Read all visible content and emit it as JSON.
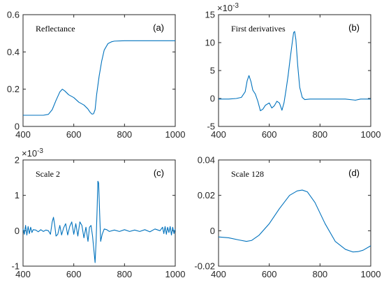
{
  "chart_data": [
    {
      "type": "line",
      "title": "Reflectance",
      "panel_letter": "(a)",
      "xlim": [
        400,
        1000
      ],
      "ylim": [
        0,
        0.6
      ],
      "xticks": [
        "400",
        "600",
        "800",
        "1000"
      ],
      "yticks": [
        "0",
        "0.2",
        "0.4",
        "0.6"
      ],
      "exponent_label": "",
      "color": "#0072BD",
      "series": [
        {
          "x": [
            400,
            440,
            480,
            500,
            515,
            530,
            545,
            555,
            565,
            580,
            600,
            620,
            640,
            655,
            665,
            672,
            678,
            684,
            690,
            700,
            710,
            720,
            735,
            750,
            760,
            800,
            850,
            900,
            950,
            1000
          ],
          "y": [
            0.06,
            0.06,
            0.06,
            0.065,
            0.09,
            0.14,
            0.185,
            0.2,
            0.19,
            0.17,
            0.155,
            0.13,
            0.115,
            0.095,
            0.075,
            0.066,
            0.068,
            0.09,
            0.17,
            0.27,
            0.35,
            0.41,
            0.445,
            0.455,
            0.458,
            0.46,
            0.46,
            0.46,
            0.46,
            0.46
          ]
        }
      ]
    },
    {
      "type": "line",
      "title": "First derivatives",
      "panel_letter": "(b)",
      "xlim": [
        400,
        1000
      ],
      "ylim": [
        -5,
        15
      ],
      "xticks": [
        "400",
        "600",
        "800",
        "1000"
      ],
      "yticks": [
        "-5",
        "0",
        "5",
        "10",
        "15"
      ],
      "exponent_label": "×10",
      "exponent_power": "-3",
      "color": "#0072BD",
      "series": [
        {
          "x": [
            400,
            440,
            470,
            490,
            505,
            513,
            520,
            528,
            535,
            545,
            555,
            565,
            575,
            585,
            600,
            610,
            620,
            630,
            640,
            650,
            658,
            666,
            674,
            682,
            690,
            696,
            700,
            705,
            712,
            720,
            730,
            740,
            760,
            800,
            850,
            900,
            940,
            960,
            1000
          ],
          "y": [
            -0.1,
            -0.1,
            0,
            0.2,
            1.2,
            3.2,
            4.1,
            3.0,
            1.5,
            0.8,
            -0.5,
            -2.2,
            -1.9,
            -1.2,
            -0.8,
            -1.7,
            -1.3,
            -0.5,
            -0.8,
            -2.1,
            -0.8,
            1.5,
            4.0,
            7.0,
            9.8,
            11.8,
            12.0,
            10.5,
            6.0,
            2.0,
            0.2,
            -0.2,
            -0.1,
            -0.1,
            -0.1,
            -0.1,
            -0.3,
            -0.1,
            -0.1
          ]
        }
      ]
    },
    {
      "type": "line",
      "title": "Scale 2",
      "panel_letter": "(c)",
      "xlim": [
        400,
        1000
      ],
      "ylim": [
        -1,
        2
      ],
      "xticks": [
        "400",
        "600",
        "800",
        "1000"
      ],
      "yticks": [
        "-1",
        "0",
        "1",
        "2"
      ],
      "exponent_label": "×10",
      "exponent_power": "-3",
      "color": "#0072BD",
      "series": [
        {
          "x": [
            400,
            405,
            410,
            415,
            420,
            425,
            430,
            435,
            440,
            450,
            460,
            470,
            480,
            490,
            500,
            508,
            515,
            520,
            525,
            530,
            537,
            545,
            552,
            560,
            568,
            576,
            584,
            592,
            600,
            608,
            616,
            624,
            632,
            640,
            648,
            656,
            662,
            668,
            674,
            680,
            684,
            688,
            692,
            695,
            698,
            702,
            706,
            712,
            720,
            730,
            740,
            760,
            780,
            800,
            820,
            840,
            860,
            880,
            900,
            920,
            940,
            950,
            955,
            960,
            965,
            970,
            975,
            980,
            985,
            990,
            995,
            1000
          ],
          "y": [
            0.05,
            -0.1,
            0.15,
            -0.12,
            0.12,
            -0.08,
            0.1,
            -0.05,
            0.03,
            0.02,
            -0.03,
            0.03,
            -0.02,
            0.02,
            0.0,
            -0.1,
            0.25,
            0.38,
            0.15,
            -0.15,
            -0.1,
            0.15,
            -0.12,
            0.08,
            0.2,
            -0.12,
            0.12,
            0.25,
            -0.1,
            0.2,
            -0.15,
            0.25,
            0.15,
            -0.2,
            0.1,
            -0.3,
            0.1,
            0.15,
            -0.15,
            -0.6,
            -0.9,
            -0.3,
            0.6,
            1.4,
            1.35,
            0.5,
            -0.3,
            -0.1,
            0.05,
            0.03,
            -0.02,
            0.02,
            -0.02,
            0.03,
            -0.02,
            0.02,
            -0.02,
            0.03,
            -0.03,
            0.05,
            0.0,
            0.1,
            -0.08,
            0.12,
            -0.1,
            0.1,
            -0.05,
            0.12,
            -0.12,
            0.1,
            -0.08,
            0.05
          ]
        }
      ]
    },
    {
      "type": "line",
      "title": "Scale 128",
      "panel_letter": "(d)",
      "xlim": [
        400,
        1000
      ],
      "ylim": [
        -0.02,
        0.04
      ],
      "xticks": [
        "400",
        "600",
        "800",
        "1000"
      ],
      "yticks": [
        "-0.02",
        "0",
        "0.02",
        "0.04"
      ],
      "exponent_label": "",
      "color": "#0072BD",
      "series": [
        {
          "x": [
            400,
            440,
            480,
            510,
            530,
            560,
            600,
            640,
            680,
            710,
            730,
            750,
            780,
            820,
            860,
            900,
            930,
            950,
            970,
            1000
          ],
          "y": [
            -0.0035,
            -0.004,
            -0.0052,
            -0.006,
            -0.0055,
            -0.0025,
            0.004,
            0.0125,
            0.02,
            0.0225,
            0.023,
            0.022,
            0.016,
            0.004,
            -0.006,
            -0.0105,
            -0.012,
            -0.0118,
            -0.011,
            -0.0085
          ]
        }
      ]
    }
  ]
}
